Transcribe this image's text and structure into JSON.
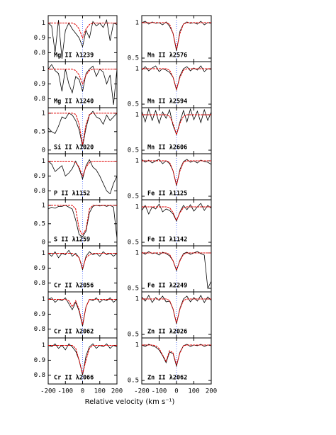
{
  "chart_data": {
    "type": "line",
    "xlabel": "Relative velocity (km s⁻¹)",
    "x": [
      -200,
      -180,
      -160,
      -140,
      -120,
      -100,
      -80,
      -60,
      -40,
      -20,
      0,
      20,
      40,
      60,
      80,
      100,
      120,
      140,
      160,
      180,
      200
    ],
    "xlim": [
      -200,
      200
    ],
    "xticks": [
      -200,
      -100,
      0,
      100,
      200
    ],
    "panels": [
      {
        "label": "Mg II λ1239",
        "ylim": [
          0.74,
          1.05
        ],
        "yticks": [
          0.8,
          0.9,
          1
        ],
        "series": [
          {
            "color": "#000000",
            "values": [
              1.0,
              0.98,
              0.8,
              1.02,
              0.76,
              0.95,
              1.0,
              0.96,
              0.93,
              0.9,
              0.84,
              0.95,
              0.9,
              1.01,
              0.98,
              1.0,
              0.97,
              1.02,
              0.88,
              1.0,
              0.99
            ]
          },
          {
            "color": "#e00000",
            "values": [
              1,
              1,
              1,
              1,
              1,
              1,
              1,
              1,
              0.99,
              0.96,
              0.9,
              0.96,
              0.99,
              1,
              1,
              1,
              1,
              1,
              1,
              1,
              1
            ]
          }
        ]
      },
      {
        "label": "Mg II λ1240",
        "ylim": [
          0.74,
          1.05
        ],
        "yticks": [
          0.8,
          0.9,
          1
        ],
        "series": [
          {
            "color": "#000000",
            "values": [
              1.0,
              1.03,
              0.99,
              0.97,
              0.85,
              1.0,
              0.9,
              0.84,
              0.95,
              0.93,
              0.85,
              0.97,
              1.0,
              1.02,
              0.95,
              1.0,
              0.98,
              0.9,
              0.96,
              0.76,
              1.0
            ]
          },
          {
            "color": "#e00000",
            "values": [
              1,
              1,
              1,
              1,
              1,
              1,
              1,
              1,
              0.99,
              0.96,
              0.9,
              0.96,
              0.99,
              1,
              1,
              1,
              1,
              1,
              1,
              1,
              1
            ]
          }
        ]
      },
      {
        "label": "Si II λ1020",
        "ylim": [
          -0.1,
          1.15
        ],
        "yticks": [
          0,
          0.5,
          1
        ],
        "series": [
          {
            "color": "#000000",
            "values": [
              0.6,
              0.5,
              0.45,
              0.65,
              0.9,
              0.85,
              1.0,
              0.95,
              0.8,
              0.55,
              0.1,
              0.6,
              0.95,
              1.05,
              0.9,
              0.85,
              0.7,
              0.95,
              0.8,
              0.9,
              1.0
            ]
          },
          {
            "color": "#e00000",
            "values": [
              1,
              1,
              1,
              1,
              1,
              1,
              1,
              1,
              0.97,
              0.7,
              0.15,
              0.7,
              0.97,
              1,
              1,
              1,
              1,
              1,
              1,
              1,
              1
            ]
          }
        ]
      },
      {
        "label": "P II λ1152",
        "ylim": [
          0.74,
          1.05
        ],
        "yticks": [
          0.8,
          0.9,
          1
        ],
        "series": [
          {
            "color": "#000000",
            "values": [
              1.0,
              0.98,
              0.93,
              0.95,
              0.97,
              0.9,
              0.92,
              0.95,
              1.0,
              0.95,
              0.88,
              0.97,
              1.01,
              0.96,
              0.94,
              0.9,
              0.85,
              0.8,
              0.78,
              0.85,
              0.9
            ]
          },
          {
            "color": "#e00000",
            "values": [
              1,
              1,
              1,
              1,
              1,
              1,
              1,
              1,
              0.99,
              0.96,
              0.9,
              0.96,
              0.99,
              1,
              1,
              1,
              1,
              1,
              1,
              1,
              1
            ]
          }
        ]
      },
      {
        "label": "S II λ1259",
        "ylim": [
          -0.1,
          1.15
        ],
        "yticks": [
          0,
          0.5,
          1
        ],
        "series": [
          {
            "color": "#000000",
            "values": [
              0.9,
              0.95,
              0.92,
              0.97,
              0.97,
              1.0,
              0.95,
              0.9,
              0.6,
              0.2,
              0.15,
              0.3,
              0.8,
              0.97,
              1.0,
              0.98,
              1.0,
              0.97,
              1.0,
              0.95,
              0.1
            ]
          },
          {
            "color": "#e00000",
            "values": [
              1,
              1,
              1,
              1,
              1,
              1,
              1,
              1,
              0.9,
              0.35,
              0.2,
              0.35,
              0.9,
              1,
              1,
              1,
              1,
              1,
              1,
              1,
              1
            ]
          }
        ]
      },
      {
        "label": "Cr II λ2056",
        "ylim": [
          0.74,
          1.05
        ],
        "yticks": [
          0.8,
          0.9,
          1
        ],
        "series": [
          {
            "color": "#000000",
            "values": [
              1,
              0.98,
              1.01,
              0.97,
              1.0,
              0.99,
              1.02,
              0.98,
              1.0,
              0.97,
              0.89,
              0.98,
              1.01,
              0.99,
              1.0,
              0.98,
              1.01,
              0.99,
              1.0,
              0.98,
              1.0
            ]
          },
          {
            "color": "#e00000",
            "values": [
              1,
              1,
              1,
              1,
              1,
              1,
              1,
              1,
              0.99,
              0.97,
              0.9,
              0.97,
              0.99,
              1,
              1,
              1,
              1,
              1,
              1,
              1,
              1
            ]
          }
        ]
      },
      {
        "label": "Cr II λ2062",
        "ylim": [
          0.74,
          1.05
        ],
        "yticks": [
          0.8,
          0.9,
          1
        ],
        "series": [
          {
            "color": "#000000",
            "values": [
              1,
              1.01,
              0.98,
              1.0,
              0.99,
              1.01,
              0.97,
              0.93,
              0.98,
              0.92,
              0.82,
              0.95,
              1.0,
              0.99,
              1.01,
              0.98,
              1.0,
              0.99,
              1.01,
              0.98,
              1.0
            ]
          },
          {
            "color": "#e00000",
            "values": [
              1,
              1,
              1,
              1,
              1,
              1,
              0.99,
              0.95,
              0.99,
              0.93,
              0.83,
              0.95,
              1,
              1,
              1,
              1,
              1,
              1,
              1,
              1,
              1
            ]
          }
        ]
      },
      {
        "label": "Cr II λ2066",
        "ylim": [
          0.74,
          1.05
        ],
        "yticks": [
          0.8,
          0.9,
          1
        ],
        "series": [
          {
            "color": "#000000",
            "values": [
              1,
              0.99,
              1.01,
              0.98,
              1.0,
              0.97,
              1.01,
              0.99,
              0.96,
              0.9,
              0.8,
              0.93,
              0.99,
              1.01,
              0.98,
              1.0,
              0.99,
              1.01,
              0.98,
              1.0,
              0.99
            ]
          },
          {
            "color": "#e00000",
            "values": [
              1,
              1,
              1,
              1,
              1,
              1,
              1,
              1,
              0.98,
              0.9,
              0.81,
              0.9,
              0.98,
              1,
              1,
              1,
              1,
              1,
              1,
              1,
              1
            ]
          }
        ]
      },
      {
        "label": "Mn II λ2576",
        "ylim": [
          0.45,
          1.1
        ],
        "yticks": [
          0.5,
          1
        ],
        "series": [
          {
            "color": "#000000",
            "values": [
              1,
              1.02,
              0.98,
              1.01,
              0.99,
              1.0,
              0.97,
              1.01,
              0.95,
              0.85,
              0.6,
              0.88,
              0.98,
              1.01,
              0.99,
              1.0,
              0.98,
              1.02,
              0.97,
              1.0,
              0.99
            ]
          },
          {
            "color": "#e00000",
            "values": [
              1,
              1,
              1,
              1,
              1,
              1,
              1,
              1,
              0.98,
              0.85,
              0.62,
              0.85,
              0.98,
              1,
              1,
              1,
              1,
              1,
              1,
              1,
              1
            ]
          }
        ]
      },
      {
        "label": "Mn II λ2594",
        "ylim": [
          0.45,
          1.1
        ],
        "yticks": [
          0.5,
          1
        ],
        "series": [
          {
            "color": "#000000",
            "values": [
              0.98,
              1.03,
              0.97,
              1.01,
              1.04,
              0.96,
              1.0,
              0.98,
              0.95,
              0.88,
              0.7,
              0.9,
              1.0,
              1.03,
              0.97,
              1.01,
              0.98,
              1.04,
              0.96,
              1.0,
              0.99
            ]
          },
          {
            "color": "#e00000",
            "values": [
              1,
              1,
              1,
              1,
              1,
              1,
              1,
              1,
              0.98,
              0.88,
              0.71,
              0.88,
              0.98,
              1,
              1,
              1,
              1,
              1,
              1,
              1,
              1
            ]
          }
        ]
      },
      {
        "label": "Mn II λ2606",
        "ylim": [
          0.45,
          1.1
        ],
        "yticks": [
          0.5,
          1
        ],
        "series": [
          {
            "color": "#000000",
            "values": [
              1.05,
              0.9,
              1.08,
              0.92,
              1.06,
              0.88,
              1.04,
              0.95,
              1.07,
              0.85,
              0.72,
              0.9,
              1.06,
              0.9,
              1.08,
              0.93,
              1.05,
              0.89,
              1.07,
              0.92,
              1.04
            ]
          },
          {
            "color": "#e00000",
            "values": [
              1,
              1,
              1,
              1,
              1,
              1,
              1,
              1,
              0.98,
              0.88,
              0.72,
              0.88,
              0.98,
              1,
              1,
              1,
              1,
              1,
              1,
              1,
              1
            ]
          }
        ]
      },
      {
        "label": "Fe II λ1125",
        "ylim": [
          0.45,
          1.1
        ],
        "yticks": [
          0.5,
          1
        ],
        "series": [
          {
            "color": "#000000",
            "values": [
              1.02,
              0.98,
              1.01,
              0.97,
              1.0,
              1.02,
              0.96,
              1.0,
              0.96,
              0.86,
              0.65,
              0.88,
              0.99,
              1.02,
              0.98,
              1.0,
              0.97,
              1.01,
              0.99,
              0.98,
              0.95
            ]
          },
          {
            "color": "#e00000",
            "values": [
              1,
              1,
              1,
              1,
              1,
              1,
              1,
              1,
              0.98,
              0.86,
              0.66,
              0.86,
              0.98,
              1,
              1,
              1,
              1,
              1,
              1,
              1,
              1
            ]
          }
        ]
      },
      {
        "label": "Fe II λ1142",
        "ylim": [
          0.45,
          1.1
        ],
        "yticks": [
          0.5,
          1
        ],
        "series": [
          {
            "color": "#000000",
            "values": [
              0.95,
              1.02,
              0.9,
              1.0,
              0.97,
              1.04,
              0.93,
              0.97,
              0.95,
              0.9,
              0.8,
              0.93,
              1.02,
              0.96,
              1.03,
              0.94,
              1.0,
              1.05,
              0.95,
              1.02,
              0.98
            ]
          },
          {
            "color": "#e00000",
            "values": [
              1,
              1,
              1,
              1,
              1,
              1,
              1,
              1,
              0.99,
              0.92,
              0.81,
              0.92,
              0.99,
              1,
              1,
              1,
              1,
              1,
              1,
              1,
              1
            ]
          }
        ]
      },
      {
        "label": "Fe II λ2249",
        "ylim": [
          0.45,
          1.1
        ],
        "yticks": [
          0.5,
          1
        ],
        "series": [
          {
            "color": "#000000",
            "values": [
              1.01,
              0.98,
              1.02,
              0.99,
              1.0,
              0.97,
              1.01,
              0.99,
              0.96,
              0.89,
              0.75,
              0.9,
              0.99,
              1.01,
              0.98,
              1.0,
              1.02,
              0.99,
              0.97,
              0.5,
              0.6
            ]
          },
          {
            "color": "#e00000",
            "values": [
              1,
              1,
              1,
              1,
              1,
              1,
              1,
              1,
              0.98,
              0.89,
              0.76,
              0.89,
              0.98,
              1,
              1,
              1,
              1,
              1,
              1,
              1,
              1
            ]
          }
        ]
      },
      {
        "label": "Zn II λ2026",
        "ylim": [
          0.45,
          1.1
        ],
        "yticks": [
          0.5,
          1
        ],
        "series": [
          {
            "color": "#000000",
            "values": [
              1.03,
              0.97,
              1.05,
              0.95,
              1.02,
              0.98,
              1.04,
              0.96,
              0.97,
              0.86,
              0.65,
              0.87,
              1.0,
              1.04,
              0.96,
              1.02,
              0.97,
              1.05,
              0.95,
              1.03,
              0.98
            ]
          },
          {
            "color": "#e00000",
            "values": [
              1,
              1,
              1,
              1,
              1,
              1,
              1,
              1,
              0.98,
              0.86,
              0.66,
              0.86,
              0.98,
              1,
              1,
              1,
              1,
              1,
              1,
              1,
              1
            ]
          }
        ]
      },
      {
        "label": "Zn II λ2062",
        "ylim": [
          0.45,
          1.1
        ],
        "yticks": [
          0.5,
          1
        ],
        "series": [
          {
            "color": "#000000",
            "values": [
              1.0,
              0.98,
              1.01,
              0.99,
              0.97,
              0.93,
              0.85,
              0.75,
              0.9,
              0.88,
              0.7,
              0.9,
              0.99,
              1.01,
              0.98,
              1.0,
              0.99,
              1.01,
              0.98,
              1.0,
              0.99
            ]
          },
          {
            "color": "#e00000",
            "values": [
              1,
              1,
              1,
              1,
              0.99,
              0.95,
              0.86,
              0.77,
              0.92,
              0.89,
              0.72,
              0.89,
              0.99,
              1,
              1,
              1,
              1,
              1,
              1,
              1,
              1
            ]
          }
        ]
      }
    ]
  }
}
